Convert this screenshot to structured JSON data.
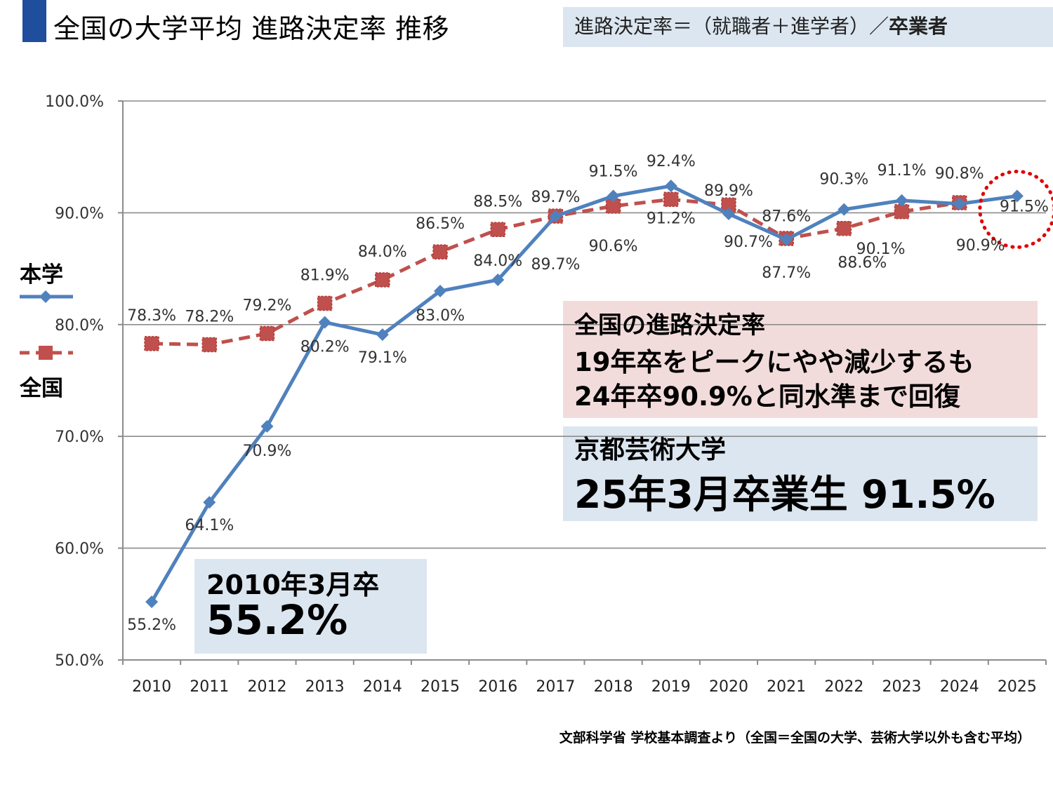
{
  "header": {
    "title": "全国の大学平均 進路決定率 推移",
    "formula_prefix": "進路決定率＝（就職者＋進学者）／",
    "formula_bold": "卒業者"
  },
  "legend": {
    "own": "本学",
    "national": "全国"
  },
  "callouts": {
    "national_line1": "全国の進路決定率",
    "national_line2": "19年卒をピークにやや減少するも",
    "national_line3": "24年卒90.9%と同水準まで回復",
    "school_line1": "京都芸術大学",
    "school_line2": "25年3月卒業生 91.5%",
    "first_line1": "2010年3月卒",
    "first_line2": "55.2%"
  },
  "footer": {
    "source": "文部科学省 学校基本調査より（全国＝全国の大学、芸術大学以外も含む平均）"
  },
  "colors": {
    "own": "#4f81bd",
    "national": "#c0504d",
    "title_bar": "#1f4e9c",
    "highlight_circle": "#e00000"
  },
  "chart_data": {
    "type": "line",
    "x": [
      "2010",
      "2011",
      "2012",
      "2013",
      "2014",
      "2015",
      "2016",
      "2017",
      "2018",
      "2019",
      "2020",
      "2021",
      "2022",
      "2023",
      "2024",
      "2025"
    ],
    "ylim": [
      50,
      100
    ],
    "yticks": [
      "50.0%",
      "60.0%",
      "70.0%",
      "80.0%",
      "90.0%",
      "100.0%"
    ],
    "grid": true,
    "series": [
      {
        "name": "本学",
        "values": [
          55.2,
          64.1,
          70.9,
          80.2,
          79.1,
          83.0,
          84.0,
          89.7,
          91.5,
          92.4,
          89.9,
          87.6,
          90.3,
          91.1,
          90.8,
          91.5
        ],
        "labels": [
          "55.2%",
          "64.1%",
          "70.9%",
          "80.2%",
          "79.1%",
          "83.0%",
          "84.0%",
          "89.7%",
          "91.5%",
          "92.4%",
          "89.9%",
          "87.6%",
          "90.3%",
          "91.1%",
          "90.8%",
          "91.5%"
        ]
      },
      {
        "name": "全国",
        "values": [
          78.3,
          78.2,
          79.2,
          81.9,
          84.0,
          86.5,
          88.5,
          89.7,
          90.6,
          91.2,
          90.7,
          87.7,
          88.6,
          90.1,
          90.9,
          null
        ],
        "labels": [
          "78.3%",
          "78.2%",
          "79.2%",
          "81.9%",
          "84.0%",
          "86.5%",
          "88.5%",
          "89.7%",
          "90.6%",
          "91.2%",
          "90.7%",
          "87.7%",
          "88.6%",
          "90.1%",
          "90.9%",
          ""
        ]
      }
    ],
    "highlight": "2025"
  }
}
